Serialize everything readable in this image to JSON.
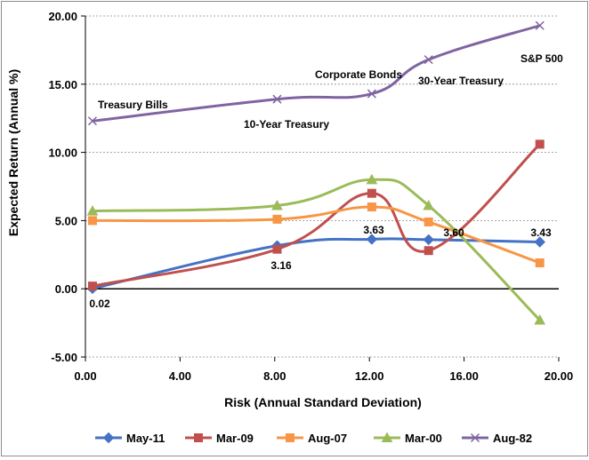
{
  "chart_data": {
    "type": "line",
    "title": "",
    "xlabel": "Risk (Annual Standard Deviation)",
    "ylabel": "Expected Return (Annual %)",
    "xlim": [
      0,
      20
    ],
    "ylim": [
      -5,
      20
    ],
    "x_ticks": [
      "0.00",
      "4.00",
      "8.00",
      "12.00",
      "16.00",
      "20.00"
    ],
    "y_ticks": [
      "-5.00",
      "0.00",
      "5.00",
      "10.00",
      "15.00",
      "20.00"
    ],
    "grid": "horizontal",
    "legend_position": "bottom",
    "x": [
      0.3,
      8.1,
      12.1,
      14.5,
      19.2
    ],
    "series": [
      {
        "name": "May-11",
        "color": "#4472c4",
        "marker": "diamond",
        "values": [
          0.02,
          3.16,
          3.63,
          3.6,
          3.43
        ]
      },
      {
        "name": "Mar-09",
        "color": "#c0504d",
        "marker": "square",
        "values": [
          0.2,
          2.9,
          7.0,
          2.8,
          10.6
        ]
      },
      {
        "name": "Aug-07",
        "color": "#f79646",
        "marker": "square",
        "values": [
          5.0,
          5.1,
          6.0,
          4.9,
          1.9
        ]
      },
      {
        "name": "Mar-00",
        "color": "#9bbb59",
        "marker": "triangle",
        "values": [
          5.7,
          6.1,
          8.0,
          6.1,
          -2.3
        ]
      },
      {
        "name": "Aug-82",
        "color": "#8064a2",
        "marker": "x",
        "values": [
          12.3,
          13.9,
          14.3,
          16.8,
          19.3
        ]
      }
    ],
    "annotations": [
      {
        "text": "Treasury Bills"
      },
      {
        "text": "10-Year Treasury"
      },
      {
        "text": "Corporate Bonds"
      },
      {
        "text": "30-Year Treasury"
      },
      {
        "text": "S&P 500"
      },
      {
        "text": "0.02"
      },
      {
        "text": "3.16"
      },
      {
        "text": "3.63"
      },
      {
        "text": "3.60"
      },
      {
        "text": "3.43"
      }
    ]
  }
}
